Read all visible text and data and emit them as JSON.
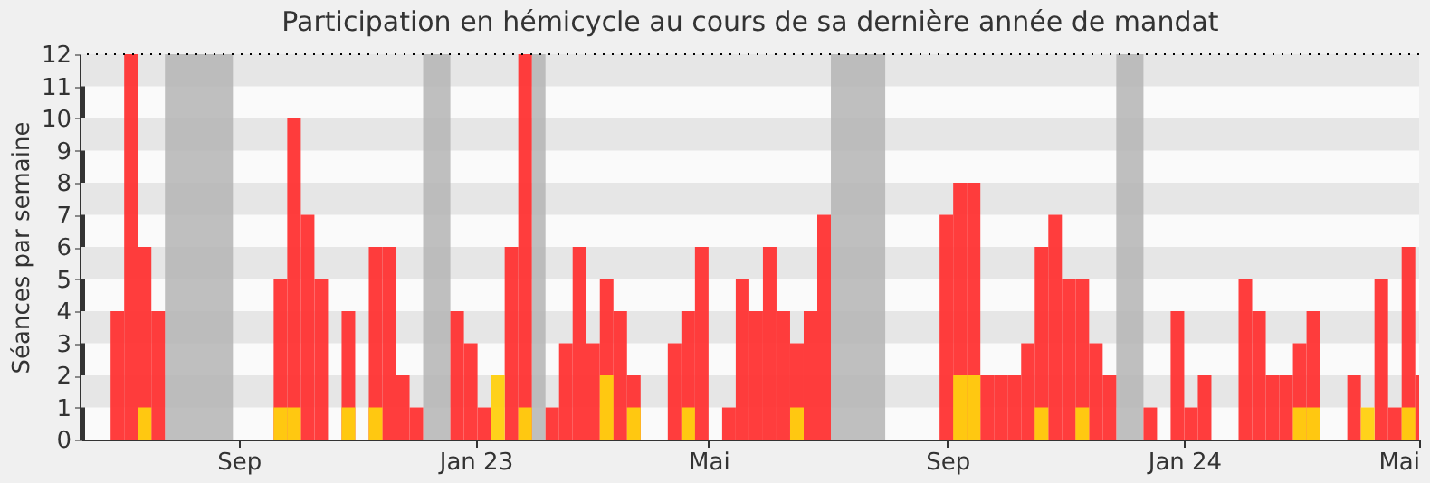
{
  "chart_data": {
    "type": "bar",
    "title": "Participation en hémicycle au cours de sa dernière année de mandat",
    "ylabel": "Séances par semaine",
    "x": [
      "2022-06-27",
      "2022-07-04",
      "2022-07-11",
      "2022-07-18",
      "2022-09-19",
      "2022-09-26",
      "2022-10-03",
      "2022-10-10",
      "2022-10-24",
      "2022-11-07",
      "2022-11-14",
      "2022-11-21",
      "2022-11-28",
      "2022-12-19",
      "2022-12-26",
      "2023-01-02",
      "2023-01-09",
      "2023-01-16",
      "2023-01-23",
      "2023-02-06",
      "2023-02-13",
      "2023-02-20",
      "2023-02-27",
      "2023-03-06",
      "2023-03-13",
      "2023-03-20",
      "2023-04-10",
      "2023-04-17",
      "2023-04-24",
      "2023-05-08",
      "2023-05-15",
      "2023-05-22",
      "2023-05-29",
      "2023-06-05",
      "2023-06-12",
      "2023-06-19",
      "2023-06-26",
      "2023-08-28",
      "2023-09-04",
      "2023-09-11",
      "2023-09-18",
      "2023-09-25",
      "2023-10-02",
      "2023-10-09",
      "2023-10-16",
      "2023-10-23",
      "2023-10-30",
      "2023-11-06",
      "2023-11-13",
      "2023-11-20",
      "2023-12-11",
      "2023-12-25",
      "2024-01-01",
      "2024-01-08",
      "2024-01-29",
      "2024-02-05",
      "2024-02-12",
      "2024-02-19",
      "2024-02-26",
      "2024-03-04",
      "2024-03-25",
      "2024-04-01",
      "2024-04-08",
      "2024-04-15",
      "2024-04-22",
      "2024-04-29"
    ],
    "series": [
      {
        "color": "#ff3333",
        "values": [
          4,
          12,
          6,
          4,
          5,
          10,
          7,
          5,
          4,
          6,
          6,
          2,
          1,
          4,
          3,
          1,
          null,
          6,
          12,
          1,
          3,
          6,
          3,
          5,
          4,
          2,
          3,
          4,
          6,
          1,
          5,
          4,
          6,
          4,
          3,
          4,
          7,
          7,
          8,
          8,
          2,
          2,
          2,
          3,
          6,
          7,
          5,
          5,
          3,
          2,
          1,
          4,
          1,
          2,
          5,
          4,
          2,
          2,
          3,
          4,
          2,
          null,
          5,
          1,
          6,
          2
        ]
      },
      {
        "color": "#ffd00f",
        "x": [
          "2022-07-11",
          "2022-09-19",
          "2022-09-26",
          "2022-10-24",
          "2022-11-07",
          "2023-01-09",
          "2023-01-23",
          "2023-03-06",
          "2023-03-20",
          "2023-04-17",
          "2023-06-12",
          "2023-09-04",
          "2023-09-11",
          "2023-10-16",
          "2023-11-06",
          "2024-02-26",
          "2024-03-04",
          "2024-04-01",
          "2024-04-22"
        ],
        "values": [
          1,
          1,
          1,
          1,
          1,
          2,
          1,
          2,
          1,
          1,
          1,
          2,
          2,
          1,
          1,
          1,
          1,
          1,
          1
        ]
      }
    ],
    "xlim": [
      "2022-06-12",
      "2024-05-01"
    ],
    "xticks": [
      {
        "value": "2022-09-01",
        "label": "Sep"
      },
      {
        "value": "2023-01-01",
        "label": "Jan 23"
      },
      {
        "value": "2023-05-01",
        "label": "Mai"
      },
      {
        "value": "2023-09-01",
        "label": "Sep"
      },
      {
        "value": "2024-01-01",
        "label": "Jan 24"
      },
      {
        "value": "2024-05-01",
        "label": "Mai"
      }
    ],
    "ylim": [
      0,
      12
    ],
    "yticks": [
      0,
      1,
      2,
      3,
      4,
      5,
      6,
      7,
      8,
      9,
      10,
      11,
      12
    ],
    "bands": [
      {
        "axis": "y",
        "from": 1,
        "to": 2,
        "color": "#e6e6e6"
      },
      {
        "axis": "y",
        "from": 3,
        "to": 4,
        "color": "#e6e6e6"
      },
      {
        "axis": "y",
        "from": 5,
        "to": 6,
        "color": "#e6e6e6"
      },
      {
        "axis": "y",
        "from": 7,
        "to": 8,
        "color": "#e6e6e6"
      },
      {
        "axis": "y",
        "from": 9,
        "to": 10,
        "color": "#e6e6e6"
      },
      {
        "axis": "y",
        "from": 11,
        "to": 12,
        "color": "#e6e6e6"
      },
      {
        "axis": "x",
        "from": "2022-07-25",
        "to": "2022-08-29",
        "color": "#b4b4b4"
      },
      {
        "axis": "x",
        "from": "2022-12-05",
        "to": "2022-12-19",
        "color": "#b4b4b4"
      },
      {
        "axis": "x",
        "from": "2023-01-30",
        "to": "2023-02-06",
        "color": "#b4b4b4"
      },
      {
        "axis": "x",
        "from": "2023-07-03",
        "to": "2023-07-31",
        "color": "#b4b4b4"
      },
      {
        "axis": "x",
        "from": "2023-11-27",
        "to": "2023-12-11",
        "color": "#b4b4b4"
      }
    ],
    "ref_lines": [
      {
        "axis": "y",
        "value": 12,
        "color": "#000000",
        "line_style": "dotted"
      }
    ]
  }
}
